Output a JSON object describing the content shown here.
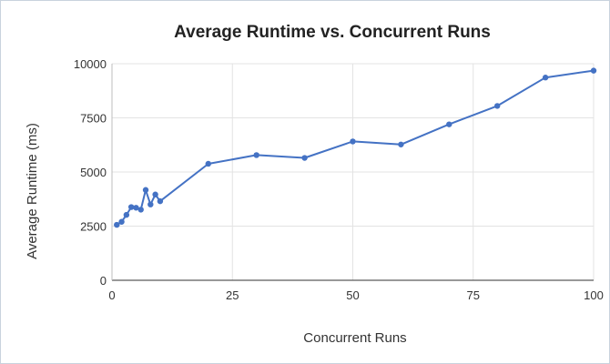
{
  "chart_data": {
    "type": "line",
    "title": "Average Runtime vs. Concurrent Runs",
    "xlabel": "Concurrent Runs",
    "ylabel": "Average Runtime (ms)",
    "xlim": [
      0,
      100
    ],
    "ylim": [
      0,
      10000
    ],
    "x_ticks": [
      "0",
      "25",
      "50",
      "75",
      "100"
    ],
    "y_ticks": [
      "0",
      "2500",
      "5000",
      "7500",
      "10000"
    ],
    "grid": true,
    "legend": "none",
    "series": [
      {
        "color": "#4472c4",
        "points": [
          {
            "x": 1,
            "y": 2560
          },
          {
            "x": 2,
            "y": 2700
          },
          {
            "x": 3,
            "y": 3020
          },
          {
            "x": 4,
            "y": 3380
          },
          {
            "x": 5,
            "y": 3350
          },
          {
            "x": 6,
            "y": 3260
          },
          {
            "x": 7,
            "y": 4170
          },
          {
            "x": 8,
            "y": 3500
          },
          {
            "x": 9,
            "y": 3960
          },
          {
            "x": 10,
            "y": 3650
          },
          {
            "x": 20,
            "y": 5380
          },
          {
            "x": 30,
            "y": 5780
          },
          {
            "x": 40,
            "y": 5650
          },
          {
            "x": 50,
            "y": 6410
          },
          {
            "x": 60,
            "y": 6270
          },
          {
            "x": 70,
            "y": 7200
          },
          {
            "x": 80,
            "y": 8050
          },
          {
            "x": 90,
            "y": 9360
          },
          {
            "x": 100,
            "y": 9680
          }
        ]
      }
    ]
  }
}
